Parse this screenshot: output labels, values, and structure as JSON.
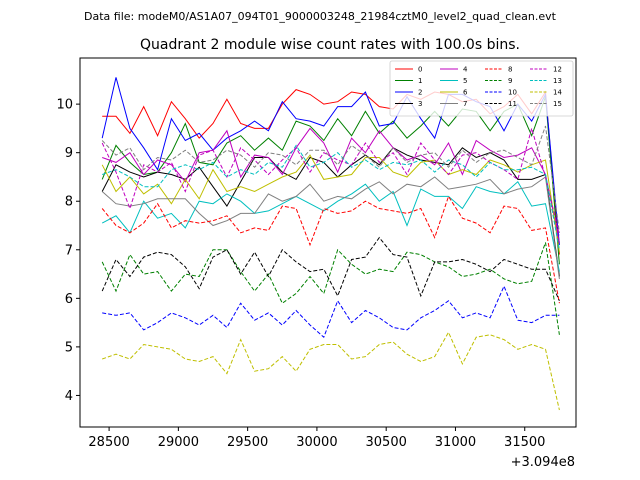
{
  "figure": {
    "suptitle": "Data file: modeM0/AS1A07_094T01_9000003248_21984cztM0_level2_quad_clean.evt",
    "title": "Quadrant 2 module wise count rates with 100.0s bins.",
    "x_offset_label": "+3.094e8"
  },
  "chart_data": {
    "type": "line",
    "title": "Quadrant 2 module wise count rates with 100.0s bins.",
    "xlabel": "",
    "ylabel": "",
    "x_offset": 309400000,
    "xlim": [
      28290,
      31870
    ],
    "ylim": [
      3.35,
      10.95
    ],
    "xticks": [
      28500,
      29000,
      29500,
      30000,
      30500,
      31000,
      31500
    ],
    "xtick_labels": [
      "28500",
      "29000",
      "29500",
      "30000",
      "30500",
      "31000",
      "31500"
    ],
    "yticks": [
      4,
      5,
      6,
      7,
      8,
      9,
      10
    ],
    "ytick_labels": [
      "4",
      "5",
      "6",
      "7",
      "8",
      "9",
      "10"
    ],
    "grid": false,
    "legend_position": "top-right",
    "x": [
      28450,
      28550,
      28650,
      28750,
      28850,
      28950,
      29050,
      29150,
      29250,
      29350,
      29450,
      29550,
      29650,
      29750,
      29850,
      29950,
      30050,
      30150,
      30250,
      30350,
      30450,
      30550,
      30650,
      30750,
      30850,
      30950,
      31050,
      31150,
      31250,
      31350,
      31450,
      31550,
      31650,
      31750
    ],
    "series": [
      {
        "name": "0",
        "color": "#ff0000",
        "style": "solid",
        "values": [
          9.75,
          9.75,
          9.4,
          9.95,
          9.35,
          10.05,
          9.7,
          9.3,
          9.6,
          10.1,
          9.6,
          9.5,
          9.5,
          10.0,
          10.3,
          10.2,
          10.0,
          10.05,
          10.25,
          10.2,
          9.95,
          9.9,
          10.2,
          10.1,
          10.25,
          10.2,
          10.05,
          10.1,
          9.8,
          9.95,
          10.2,
          9.8,
          10.25,
          6.9
        ]
      },
      {
        "name": "1",
        "color": "#008000",
        "style": "solid",
        "values": [
          8.45,
          9.15,
          8.8,
          8.55,
          8.6,
          9.0,
          9.6,
          8.8,
          8.75,
          9.2,
          9.35,
          9.05,
          9.3,
          9.05,
          9.65,
          9.55,
          9.25,
          9.7,
          9.35,
          9.85,
          9.4,
          9.65,
          9.3,
          9.55,
          9.85,
          9.55,
          9.9,
          9.85,
          9.45,
          9.85,
          10.0,
          9.35,
          10.15,
          6.7
        ]
      },
      {
        "name": "2",
        "color": "#0000ff",
        "style": "solid",
        "values": [
          9.3,
          10.55,
          9.5,
          9.1,
          8.65,
          9.7,
          9.25,
          9.4,
          9.05,
          9.3,
          9.45,
          9.65,
          9.45,
          10.05,
          9.7,
          9.65,
          9.55,
          9.95,
          9.95,
          10.25,
          9.55,
          9.6,
          10.15,
          9.7,
          9.3,
          10.2,
          10.2,
          10.05,
          9.95,
          9.45,
          10.0,
          9.65,
          10.2,
          7.1
        ]
      },
      {
        "name": "3",
        "color": "#000000",
        "style": "solid",
        "values": [
          8.2,
          8.75,
          8.6,
          8.5,
          8.6,
          8.55,
          8.45,
          8.7,
          8.3,
          7.9,
          8.4,
          8.9,
          8.9,
          8.6,
          8.45,
          8.9,
          8.8,
          8.5,
          8.75,
          8.95,
          8.75,
          9.1,
          8.95,
          8.85,
          8.8,
          8.75,
          9.1,
          8.9,
          9.0,
          8.85,
          8.45,
          8.45,
          8.55,
          6.45
        ]
      },
      {
        "name": "4",
        "color": "#bf00bf",
        "style": "solid",
        "values": [
          8.9,
          8.8,
          9.0,
          8.55,
          8.85,
          8.75,
          8.4,
          9.0,
          9.05,
          9.45,
          8.5,
          8.95,
          8.9,
          8.55,
          9.1,
          9.5,
          9.2,
          8.6,
          9.3,
          9.0,
          9.45,
          9.1,
          8.85,
          8.95,
          8.75,
          9.2,
          8.55,
          9.25,
          9.05,
          8.9,
          8.95,
          9.1,
          8.55,
          7.15
        ]
      },
      {
        "name": "5",
        "color": "#00bfbf",
        "style": "solid",
        "values": [
          7.55,
          7.7,
          7.35,
          8.0,
          7.65,
          7.75,
          7.45,
          8.0,
          7.95,
          8.15,
          8.0,
          7.75,
          7.8,
          7.95,
          8.1,
          7.95,
          7.8,
          8.0,
          8.15,
          8.35,
          8.0,
          8.2,
          7.5,
          8.25,
          8.1,
          8.1,
          7.85,
          8.3,
          8.2,
          8.15,
          8.4,
          7.9,
          7.95,
          6.55
        ]
      },
      {
        "name": "6",
        "color": "#bfbf00",
        "style": "solid",
        "values": [
          8.75,
          8.2,
          8.5,
          8.15,
          8.35,
          7.95,
          8.45,
          8.05,
          8.65,
          8.2,
          8.3,
          8.2,
          8.35,
          8.5,
          8.6,
          8.95,
          8.45,
          8.5,
          8.55,
          8.9,
          8.9,
          8.6,
          8.5,
          8.8,
          8.85,
          8.55,
          8.65,
          8.55,
          8.85,
          8.75,
          8.6,
          8.75,
          8.85,
          6.95
        ]
      },
      {
        "name": "7",
        "color": "#808080",
        "style": "solid",
        "values": [
          8.2,
          7.95,
          7.9,
          7.95,
          8.05,
          8.05,
          8.05,
          7.75,
          7.5,
          7.6,
          7.75,
          7.75,
          8.15,
          8.0,
          8.1,
          8.35,
          8.0,
          8.1,
          8.05,
          8.25,
          8.4,
          8.15,
          8.35,
          8.3,
          8.5,
          8.25,
          8.3,
          8.35,
          8.45,
          8.15,
          8.25,
          8.3,
          8.5,
          6.4
        ]
      },
      {
        "name": "8",
        "color": "#ff0000",
        "style": "dashed",
        "values": [
          7.85,
          7.5,
          7.35,
          7.55,
          7.95,
          7.45,
          7.6,
          7.55,
          7.6,
          7.7,
          7.35,
          7.45,
          7.4,
          7.9,
          7.85,
          7.1,
          7.85,
          7.75,
          7.8,
          8.0,
          7.85,
          7.8,
          7.75,
          7.85,
          7.25,
          8.1,
          7.65,
          7.55,
          7.35,
          7.9,
          7.85,
          7.4,
          7.45,
          5.9
        ]
      },
      {
        "name": "9",
        "color": "#008000",
        "style": "dashed",
        "values": [
          6.75,
          6.15,
          6.9,
          6.5,
          6.55,
          6.15,
          6.5,
          6.45,
          7.0,
          7.0,
          6.55,
          6.15,
          6.5,
          5.9,
          6.1,
          6.45,
          6.1,
          7.0,
          6.7,
          6.5,
          6.6,
          6.55,
          6.95,
          6.9,
          6.75,
          6.65,
          6.45,
          6.5,
          6.6,
          6.4,
          6.3,
          6.35,
          7.15,
          5.25
        ]
      },
      {
        "name": "10",
        "color": "#0000ff",
        "style": "dashed",
        "values": [
          5.7,
          5.65,
          5.7,
          5.35,
          5.5,
          5.7,
          5.6,
          5.45,
          5.65,
          5.4,
          5.9,
          5.55,
          5.7,
          5.45,
          5.75,
          5.45,
          5.2,
          5.95,
          5.5,
          5.75,
          5.6,
          5.4,
          5.35,
          5.6,
          5.75,
          5.95,
          5.6,
          5.7,
          5.6,
          6.25,
          5.55,
          5.5,
          5.65,
          5.65
        ]
      },
      {
        "name": "11",
        "color": "#000000",
        "style": "dashed",
        "values": [
          6.15,
          6.8,
          6.45,
          6.85,
          6.95,
          6.9,
          6.65,
          6.2,
          6.85,
          7.0,
          6.5,
          6.95,
          6.45,
          7.0,
          6.75,
          6.55,
          6.6,
          6.05,
          6.8,
          6.85,
          7.25,
          6.9,
          6.85,
          6.05,
          6.75,
          6.75,
          6.8,
          6.7,
          6.55,
          6.8,
          6.7,
          6.6,
          6.6,
          5.95
        ]
      },
      {
        "name": "12",
        "color": "#bf00bf",
        "style": "dashed",
        "values": [
          9.2,
          8.6,
          7.85,
          8.75,
          8.6,
          8.8,
          8.2,
          8.95,
          9.05,
          8.5,
          9.1,
          8.85,
          8.55,
          8.85,
          9.1,
          8.6,
          9.0,
          8.85,
          8.75,
          9.2,
          8.8,
          9.0,
          8.55,
          9.2,
          8.85,
          8.55,
          8.95,
          9.0,
          8.8,
          8.65,
          8.45,
          9.5,
          8.5,
          7.3
        ]
      },
      {
        "name": "13",
        "color": "#00bfbf",
        "style": "dashed",
        "values": [
          8.55,
          8.65,
          8.5,
          8.3,
          8.3,
          8.65,
          8.75,
          8.65,
          8.8,
          8.5,
          8.65,
          8.55,
          8.8,
          8.7,
          9.15,
          8.7,
          8.8,
          9.0,
          8.7,
          8.85,
          8.65,
          8.8,
          8.75,
          8.85,
          8.6,
          8.85,
          8.75,
          8.5,
          8.8,
          8.65,
          8.65,
          8.7,
          8.55,
          7.0
        ]
      },
      {
        "name": "14",
        "color": "#bfbf00",
        "style": "dashed",
        "values": [
          4.75,
          4.85,
          4.75,
          5.05,
          5.0,
          4.95,
          4.75,
          4.7,
          4.8,
          4.45,
          5.15,
          4.5,
          4.55,
          4.8,
          4.5,
          4.95,
          5.05,
          5.05,
          4.75,
          4.8,
          5.05,
          5.1,
          4.85,
          4.7,
          4.8,
          5.3,
          4.65,
          5.2,
          5.25,
          5.15,
          4.95,
          5.05,
          4.95,
          3.7
        ]
      },
      {
        "name": "15",
        "color": "#808080",
        "style": "dashed",
        "values": [
          9.25,
          8.95,
          9.1,
          8.65,
          8.9,
          8.85,
          9.05,
          8.8,
          8.85,
          9.05,
          8.95,
          8.7,
          9.0,
          8.95,
          8.75,
          9.05,
          9.05,
          8.75,
          9.15,
          8.95,
          8.7,
          9.1,
          8.8,
          8.95,
          9.0,
          8.7,
          9.05,
          8.8,
          9.0,
          9.05,
          8.9,
          8.75,
          9.55,
          7.35
        ]
      }
    ]
  }
}
